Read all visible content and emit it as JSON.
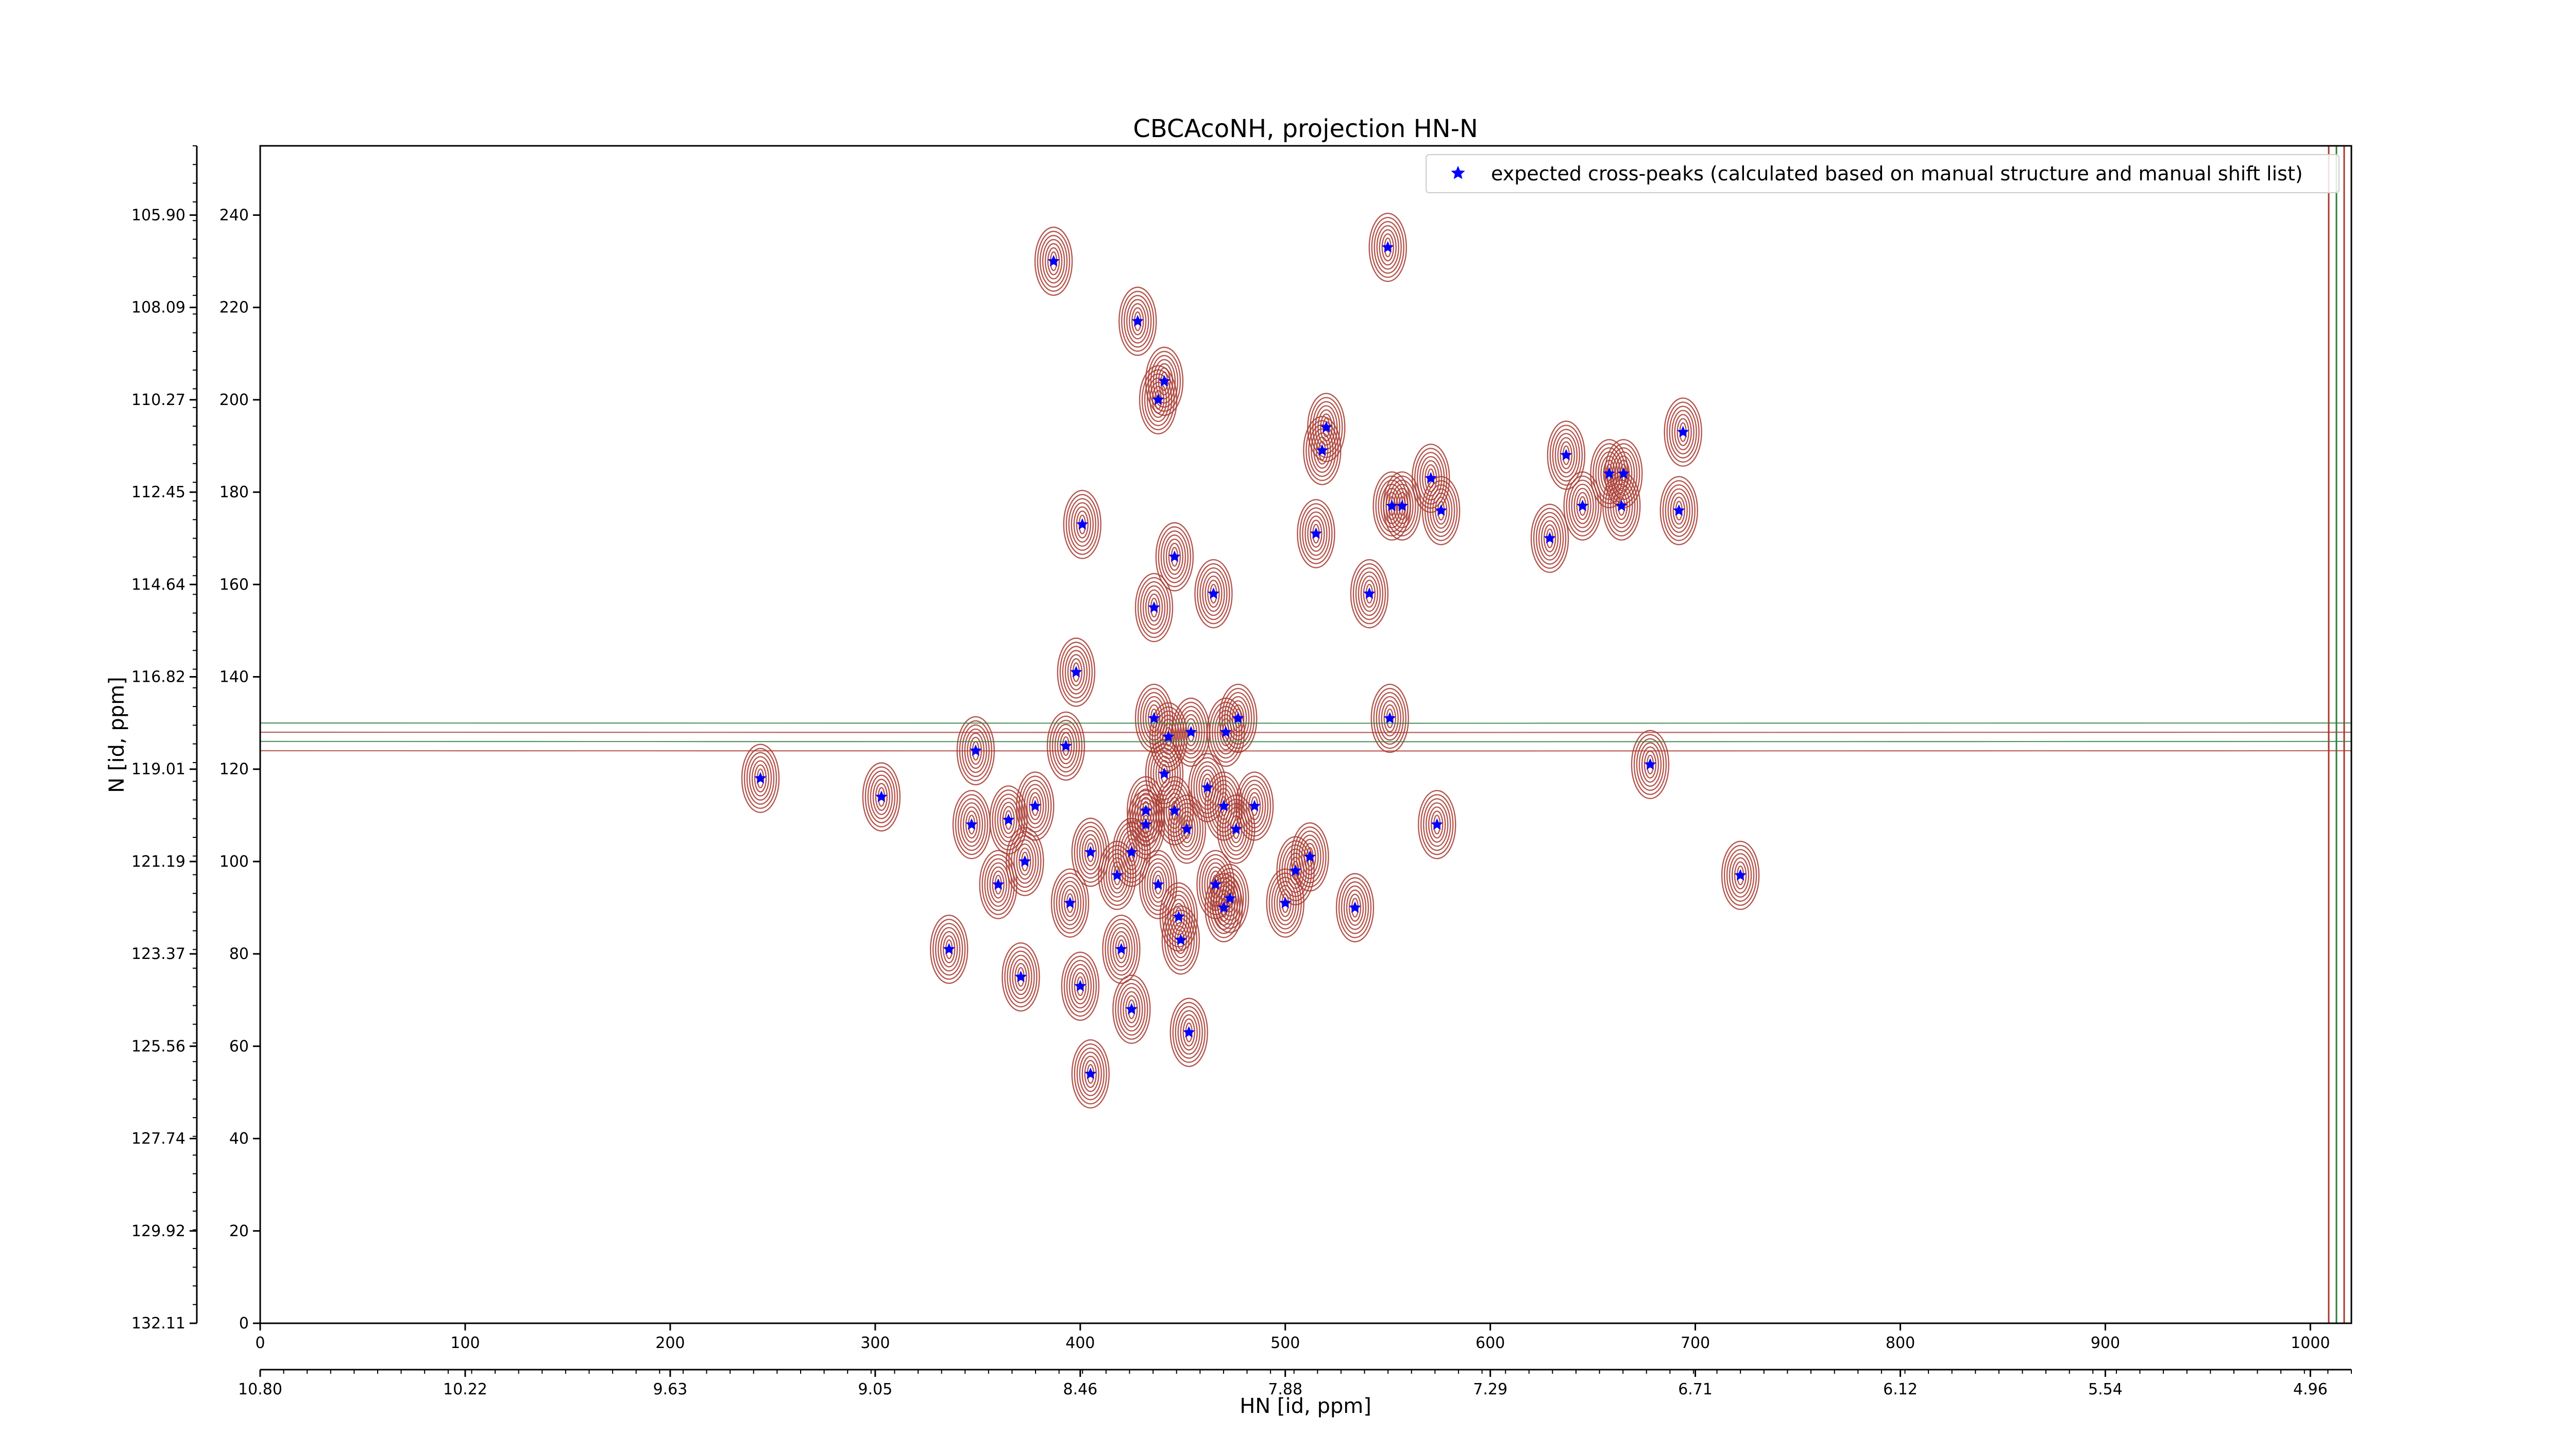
{
  "chart_data": {
    "type": "scatter",
    "title": "CBCAcoNH, projection HN-N",
    "xlabel": "",
    "ylabel": "N [id, ppm]",
    "xlabel_secondary": "HN [id, ppm]",
    "xlim": [
      0,
      1020
    ],
    "ylim": [
      0,
      255
    ],
    "x_ticks": [
      0,
      100,
      200,
      300,
      400,
      500,
      600,
      700,
      800,
      900,
      1000
    ],
    "y_ticks": [
      0,
      20,
      40,
      60,
      80,
      100,
      120,
      140,
      160,
      180,
      200,
      220,
      240
    ],
    "x_ppm_tick_points": [
      0,
      53.8,
      107.6,
      161.4,
      215.2,
      269,
      322.8,
      376.6,
      430.4,
      484.2,
      538
    ],
    "x_ppm_tick_labels": [
      "10.80",
      "10.22",
      "9.63",
      "9.05",
      "8.46",
      "7.88",
      "7.29",
      "6.71",
      "6.12",
      "5.54",
      "4.96"
    ],
    "y_ppm_tick_labels": [
      "132.11",
      "129.92",
      "127.74",
      "125.56",
      "123.37",
      "121.19",
      "119.01",
      "116.82",
      "114.64",
      "112.45",
      "110.27",
      "108.09",
      "105.90"
    ],
    "grid": false,
    "legend_position": "top-right",
    "series": [
      {
        "name": "expected cross-peaks (calculated based on manual structure and manual shift list)",
        "color": "#0000ff",
        "marker": "star",
        "points": [
          [
            387,
            230
          ],
          [
            550,
            233
          ],
          [
            428,
            217
          ],
          [
            441,
            204
          ],
          [
            438,
            200
          ],
          [
            520,
            194
          ],
          [
            518,
            189
          ],
          [
            571,
            183
          ],
          [
            552,
            177
          ],
          [
            557,
            177
          ],
          [
            576,
            176
          ],
          [
            515,
            171
          ],
          [
            401,
            173
          ],
          [
            694,
            193
          ],
          [
            637,
            188
          ],
          [
            658,
            184
          ],
          [
            665,
            184
          ],
          [
            645,
            177
          ],
          [
            664,
            177
          ],
          [
            692,
            176
          ],
          [
            629,
            170
          ],
          [
            446,
            166
          ],
          [
            465,
            158
          ],
          [
            541,
            158
          ],
          [
            436,
            155
          ],
          [
            398,
            141
          ],
          [
            551,
            131
          ],
          [
            436,
            131
          ],
          [
            443,
            127
          ],
          [
            454,
            128
          ],
          [
            471,
            128
          ],
          [
            477,
            131
          ],
          [
            349,
            124
          ],
          [
            393,
            125
          ],
          [
            678,
            121
          ],
          [
            244,
            118
          ],
          [
            441,
            119
          ],
          [
            462,
            116
          ],
          [
            303,
            114
          ],
          [
            378,
            112
          ],
          [
            432,
            111
          ],
          [
            446,
            111
          ],
          [
            470,
            112
          ],
          [
            485,
            112
          ],
          [
            347,
            108
          ],
          [
            365,
            109
          ],
          [
            432,
            108
          ],
          [
            452,
            107
          ],
          [
            476,
            107
          ],
          [
            574,
            108
          ],
          [
            405,
            102
          ],
          [
            425,
            102
          ],
          [
            373,
            100
          ],
          [
            512,
            101
          ],
          [
            418,
            97
          ],
          [
            505,
            98
          ],
          [
            360,
            95
          ],
          [
            438,
            95
          ],
          [
            466,
            95
          ],
          [
            722,
            97
          ],
          [
            395,
            91
          ],
          [
            473,
            92
          ],
          [
            470,
            90
          ],
          [
            500,
            91
          ],
          [
            534,
            90
          ],
          [
            448,
            88
          ],
          [
            449,
            83
          ],
          [
            336,
            81
          ],
          [
            420,
            81
          ],
          [
            371,
            75
          ],
          [
            400,
            73
          ],
          [
            425,
            68
          ],
          [
            453,
            63
          ],
          [
            405,
            54
          ]
        ]
      }
    ],
    "contour_colors": {
      "positive": "#a83a30",
      "negative": "#2e7d3e"
    }
  }
}
